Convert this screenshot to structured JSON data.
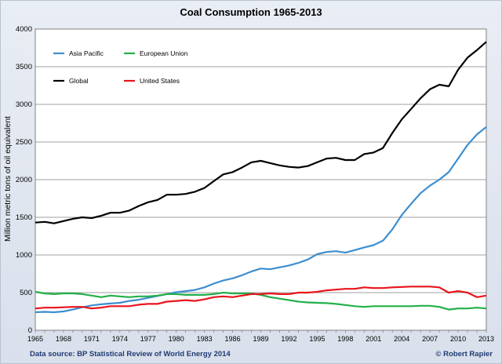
{
  "chart_data": {
    "type": "line",
    "title": "Coal Consumption 1965-2013",
    "ylabel": "Million metric tons of oil equivalent",
    "xlabel": "",
    "ylim": [
      0,
      4000
    ],
    "yticks": [
      0,
      500,
      1000,
      1500,
      2000,
      2500,
      3000,
      3500,
      4000
    ],
    "xlim": [
      1965,
      2013
    ],
    "xticks": [
      1965,
      1968,
      1971,
      1974,
      1977,
      1980,
      1983,
      1986,
      1989,
      1992,
      1995,
      1998,
      2001,
      2004,
      2007,
      2010,
      2013
    ],
    "grid": "horizontal",
    "legend": "top-left",
    "x": [
      1965,
      1966,
      1967,
      1968,
      1969,
      1970,
      1971,
      1972,
      1973,
      1974,
      1975,
      1976,
      1977,
      1978,
      1979,
      1980,
      1981,
      1982,
      1983,
      1984,
      1985,
      1986,
      1987,
      1988,
      1989,
      1990,
      1991,
      1992,
      1993,
      1994,
      1995,
      1996,
      1997,
      1998,
      1999,
      2000,
      2001,
      2002,
      2003,
      2004,
      2005,
      2006,
      2007,
      2008,
      2009,
      2010,
      2011,
      2012,
      2013
    ],
    "series": [
      {
        "name": "Asia Pacific",
        "color": "#3c8ed0",
        "values": [
          240,
          245,
          240,
          250,
          275,
          305,
          330,
          345,
          355,
          365,
          390,
          405,
          430,
          455,
          480,
          505,
          520,
          535,
          570,
          620,
          660,
          690,
          730,
          780,
          820,
          810,
          835,
          860,
          895,
          940,
          1010,
          1040,
          1050,
          1030,
          1065,
          1100,
          1130,
          1190,
          1340,
          1530,
          1680,
          1820,
          1920,
          2000,
          2100,
          2280,
          2460,
          2600,
          2700
        ]
      },
      {
        "name": "European Union",
        "color": "#22b04a",
        "values": [
          510,
          490,
          480,
          490,
          490,
          480,
          460,
          440,
          460,
          450,
          440,
          450,
          450,
          460,
          480,
          480,
          470,
          470,
          470,
          480,
          500,
          490,
          490,
          490,
          470,
          440,
          420,
          400,
          380,
          370,
          365,
          360,
          350,
          335,
          320,
          310,
          320,
          320,
          320,
          320,
          320,
          325,
          325,
          310,
          275,
          290,
          290,
          300,
          290
        ]
      },
      {
        "name": "Global",
        "color": "#000000",
        "values": [
          1430,
          1440,
          1420,
          1450,
          1480,
          1500,
          1490,
          1520,
          1560,
          1560,
          1590,
          1650,
          1700,
          1730,
          1800,
          1800,
          1810,
          1840,
          1890,
          1980,
          2070,
          2100,
          2160,
          2230,
          2250,
          2220,
          2190,
          2170,
          2160,
          2180,
          2230,
          2280,
          2290,
          2260,
          2260,
          2340,
          2360,
          2420,
          2620,
          2800,
          2940,
          3080,
          3200,
          3260,
          3240,
          3460,
          3620,
          3720,
          3830
        ]
      },
      {
        "name": "United States",
        "color": "#e8141b",
        "values": [
          290,
          300,
          300,
          305,
          310,
          310,
          290,
          300,
          320,
          320,
          320,
          340,
          350,
          350,
          380,
          390,
          400,
          390,
          410,
          440,
          450,
          440,
          460,
          480,
          480,
          490,
          480,
          480,
          500,
          500,
          510,
          530,
          540,
          550,
          550,
          570,
          560,
          560,
          570,
          575,
          580,
          580,
          580,
          570,
          500,
          520,
          500,
          440,
          460
        ]
      }
    ],
    "source": "Data source: BP Statistical Review of World Energy 2014",
    "credit": "© Robert Rapier"
  }
}
